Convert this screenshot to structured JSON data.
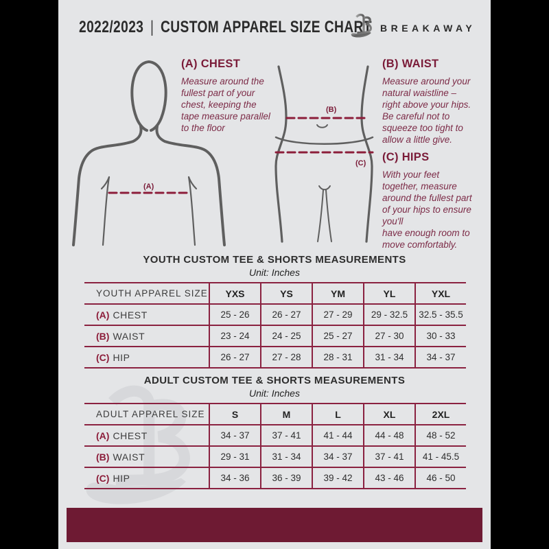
{
  "header": {
    "season": "2022/2023",
    "divider": "|",
    "title": "CUSTOM APPAREL SIZE CHART",
    "brand": "BREAKAWAY"
  },
  "colors": {
    "maroon_footer": "#6E1A33",
    "maroon_text": "#7A1B38",
    "maroon_border": "#8A2140",
    "page_bg": "#E4E5E7",
    "frame_bg": "#000000",
    "figure_gray": "#5F5F5F",
    "watermark_gray": "#D7D8DB"
  },
  "guide": {
    "chest": {
      "heading": "(A) CHEST",
      "body": "Measure around the\nfullest part of your\nchest, keeping the\ntape measure parallel\nto the floor"
    },
    "waist": {
      "heading": "(B) WAIST",
      "body": "Measure around your\nnatural waistline –\nright above your hips.\nBe careful not to\nsqueeze too tight to\nallow a little give."
    },
    "hips": {
      "heading": "(C) HIPS",
      "body": "With your feet\ntogether, measure\naround the fullest part\nof your hips to ensure\nyou'll\nhave enough room to\nmove comfortably."
    },
    "markers": {
      "chest": "(A)",
      "waist": "(B)",
      "hips": "(C)"
    }
  },
  "tables": [
    {
      "title": "YOUTH CUSTOM TEE & SHORTS MEASUREMENTS",
      "unit": "Unit: Inches",
      "size_label": "YOUTH APPAREL SIZE",
      "sizes": [
        "YXS",
        "YS",
        "YM",
        "YL",
        "YXL"
      ],
      "rows": [
        {
          "prefix": "(A)",
          "label": "CHEST",
          "values": [
            "25 - 26",
            "26 - 27",
            "27 - 29",
            "29 - 32.5",
            "32.5 - 35.5"
          ]
        },
        {
          "prefix": "(B)",
          "label": "WAIST",
          "values": [
            "23 - 24",
            "24 - 25",
            "25 - 27",
            "27 - 30",
            "30 - 33"
          ]
        },
        {
          "prefix": "(C)",
          "label": "HIP",
          "values": [
            "26 - 27",
            "27 - 28",
            "28 - 31",
            "31 - 34",
            "34 - 37"
          ]
        }
      ]
    },
    {
      "title": "ADULT CUSTOM TEE & SHORTS MEASUREMENTS",
      "unit": "Unit: Inches",
      "size_label": "ADULT APPAREL SIZE",
      "sizes": [
        "S",
        "M",
        "L",
        "XL",
        "2XL"
      ],
      "rows": [
        {
          "prefix": "(A)",
          "label": "CHEST",
          "values": [
            "34 - 37",
            "37 - 41",
            "41 - 44",
            "44 - 48",
            "48 - 52"
          ]
        },
        {
          "prefix": "(B)",
          "label": "WAIST",
          "values": [
            "29 - 31",
            "31 - 34",
            "34 - 37",
            "37 - 41",
            "41 - 45.5"
          ]
        },
        {
          "prefix": "(C)",
          "label": "HIP",
          "values": [
            "34 - 36",
            "36 - 39",
            "39 - 42",
            "43 - 46",
            "46 - 50"
          ]
        }
      ]
    }
  ]
}
